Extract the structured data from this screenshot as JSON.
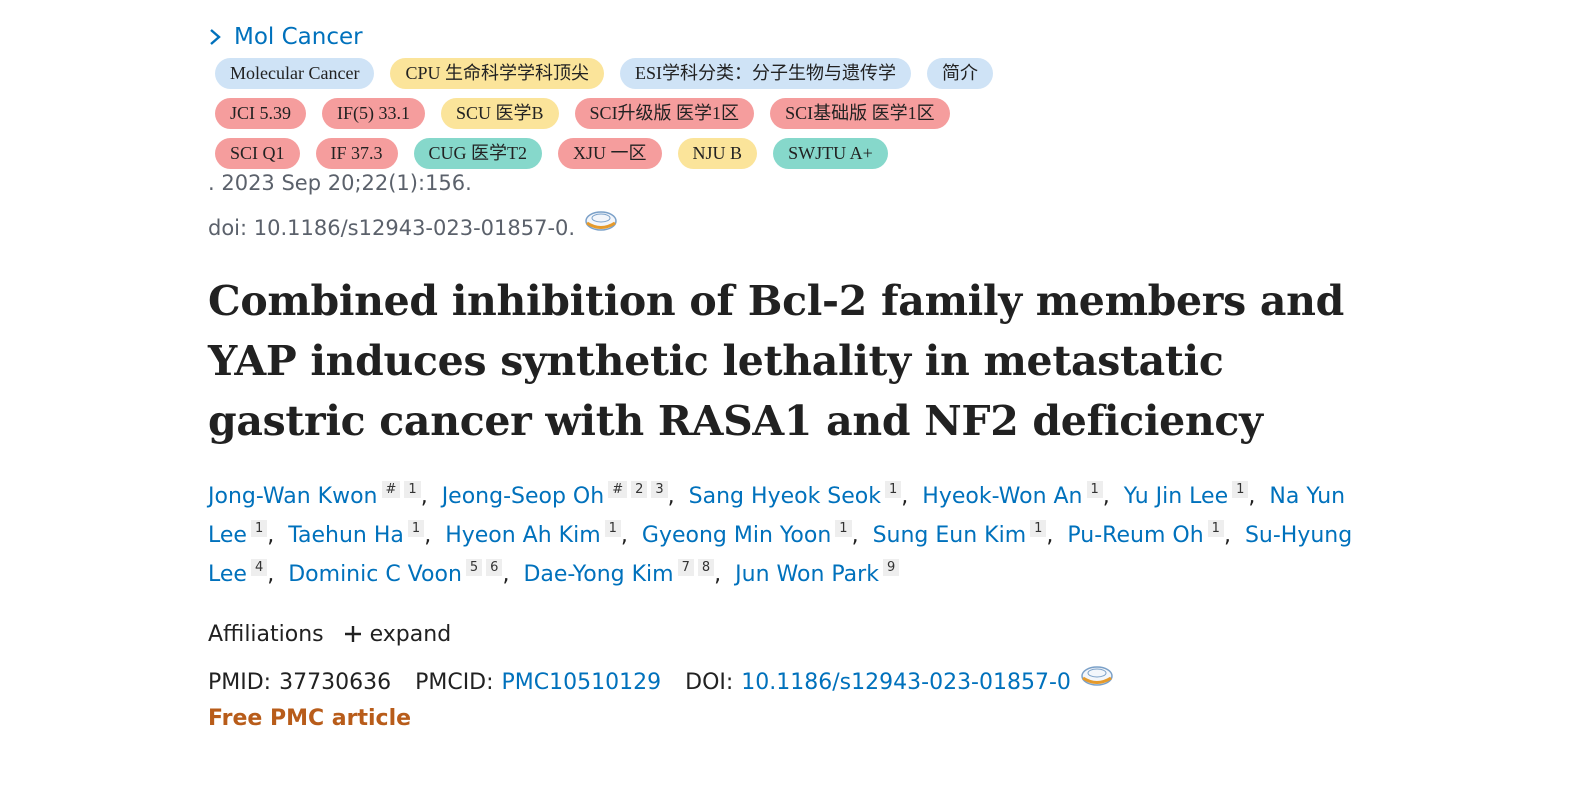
{
  "journal": "Mol Cancer",
  "badge_rows": [
    [
      {
        "text": "Molecular Cancer",
        "color": "#cfe3f6"
      },
      {
        "text": "CPU 生命科学学科顶尖",
        "color": "#fbe49a"
      },
      {
        "text": "ESI学科分类：分子生物与遗传学",
        "color": "#cfe3f6"
      },
      {
        "text": "简介",
        "color": "#cfe3f6"
      }
    ],
    [
      {
        "text": "JCI 5.39",
        "color": "#f59d9d"
      },
      {
        "text": "IF(5) 33.1",
        "color": "#f59d9d"
      },
      {
        "text": "SCU 医学B",
        "color": "#fbe49a"
      },
      {
        "text": "SCI升级版 医学1区",
        "color": "#f59d9d"
      },
      {
        "text": "SCI基础版 医学1区",
        "color": "#f59d9d"
      }
    ],
    [
      {
        "text": "SCI Q1",
        "color": "#f59d9d"
      },
      {
        "text": "IF 37.3",
        "color": "#f59d9d"
      },
      {
        "text": "CUG 医学T2",
        "color": "#86d8cb"
      },
      {
        "text": "XJU 一区",
        "color": "#f59d9d"
      },
      {
        "text": "NJU B",
        "color": "#fbe49a"
      },
      {
        "text": "SWJTU A+",
        "color": "#86d8cb"
      }
    ]
  ],
  "citation": ". 2023 Sep 20;22(1):156.",
  "doi_line": "doi: 10.1186/s12943-023-01857-0.",
  "title": "Combined inhibition of Bcl-2 family members and YAP induces synthetic lethality in metastatic gastric cancer with RASA1 and NF2 deficiency",
  "authors": {
    "separator": ",",
    "list": [
      {
        "name": "Jong-Wan Kwon",
        "marks": [
          "#",
          "1"
        ]
      },
      {
        "name": "Jeong-Seop Oh",
        "marks": [
          "#",
          "2",
          "3"
        ]
      },
      {
        "name": "Sang Hyeok Seok",
        "marks": [
          "1"
        ]
      },
      {
        "name": "Hyeok-Won An",
        "marks": [
          "1"
        ]
      },
      {
        "name": "Yu Jin Lee",
        "marks": [
          "1"
        ]
      },
      {
        "name": "Na Yun Lee",
        "marks": [
          "1"
        ]
      },
      {
        "name": "Taehun Ha",
        "marks": [
          "1"
        ]
      },
      {
        "name": "Hyeon Ah Kim",
        "marks": [
          "1"
        ]
      },
      {
        "name": "Gyeong Min Yoon",
        "marks": [
          "1"
        ]
      },
      {
        "name": "Sung Eun Kim",
        "marks": [
          "1"
        ]
      },
      {
        "name": "Pu-Reum Oh",
        "marks": [
          "1"
        ]
      },
      {
        "name": "Su-Hyung Lee",
        "marks": [
          "4"
        ]
      },
      {
        "name": "Dominic C Voon",
        "marks": [
          "5",
          "6"
        ]
      },
      {
        "name": "Dae-Yong Kim",
        "marks": [
          "7",
          "8"
        ]
      },
      {
        "name": "Jun Won Park",
        "marks": [
          "9"
        ]
      }
    ]
  },
  "affiliations": {
    "label": "Affiliations",
    "expand": "expand"
  },
  "ids": {
    "pmid_label": "PMID:",
    "pmid": "37730636",
    "pmcid_label": "PMCID:",
    "pmcid": "PMC10510129",
    "doi_label": "DOI:",
    "doi": "10.1186/s12943-023-01857-0"
  },
  "free_label": "Free PMC article"
}
